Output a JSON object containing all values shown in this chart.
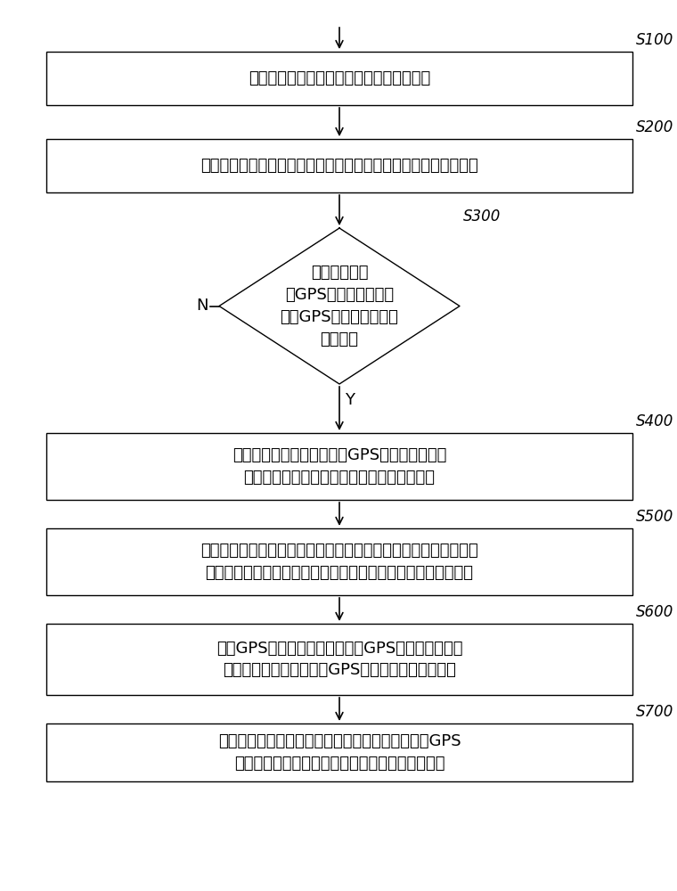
{
  "bg_color": "#ffffff",
  "box_edge_color": "#000000",
  "text_color": "#000000",
  "arrow_color": "#000000",
  "step_labels": [
    "S100",
    "S200",
    "S300",
    "S400",
    "S500",
    "S600",
    "S700"
  ],
  "step_texts": [
    "通过运动传感器，采集用户的运动传感数据",
    "根据采集的所述运动传感数据，获取所述用户的运动坐标位置数据",
    "判断是否已开\n启GPS定位功能并通过\n所述GPS完成用户当前位\n置的定位",
    "根据通过所述运动传感器、GPS定位分别获取的\n用户的当前坐标位置数据，获取坐标修正数据",
    "根据所述坐标修正数据，修正根据所述运动传感数据获取的所述用\n户的运动坐标位置数据，生成运动传感器定位的用户的运动轨迹",
    "所述GPS定位完成后，通过所述GPS获取用户的运动\n坐标位置数据，形成所述GPS定位的用户的运动轨迹",
    "对接所述运动传感器定位的用户的运动轨迹与所述GPS\n定位的用户的运动轨迹，完成用户的运动轨迹记录"
  ],
  "N_label": "N",
  "Y_label": "Y",
  "font_size_box": 13,
  "font_size_label": 12,
  "font_size_ny": 13,
  "figwidth": 7.6,
  "figheight": 10.0,
  "dpi": 100
}
